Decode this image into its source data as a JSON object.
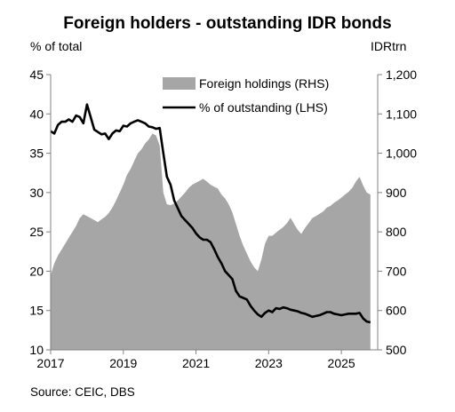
{
  "chart_data": {
    "type": "area",
    "title": "Foreign holders - outstanding IDR bonds",
    "left_axis": {
      "unit_label": "% of total",
      "ylim": [
        10,
        45
      ],
      "ticks": [
        10,
        15,
        20,
        25,
        30,
        35,
        40,
        45
      ]
    },
    "right_axis": {
      "unit_label": "IDRtrn",
      "ylim": [
        500,
        1200
      ],
      "ticks": [
        "500",
        "600",
        "700",
        "800",
        "900",
        "1,000",
        "1,100",
        "1,200"
      ],
      "tick_values": [
        500,
        600,
        700,
        800,
        900,
        1000,
        1100,
        1200
      ]
    },
    "x_axis": {
      "range": [
        2017.0,
        2026.0
      ],
      "ticks": [
        "2017",
        "2019",
        "2021",
        "2023",
        "2025"
      ],
      "tick_values": [
        2017,
        2019,
        2021,
        2023,
        2025
      ]
    },
    "grid": false,
    "legend_position": "top-right",
    "source": "Source: CEIC, DBS",
    "series": [
      {
        "name": "Foreign holdings (RHS)",
        "axis": "right",
        "kind": "area",
        "color": "#a6a6a6",
        "x": [
          2017.0,
          2017.1,
          2017.2,
          2017.3,
          2017.4,
          2017.5,
          2017.6,
          2017.7,
          2017.8,
          2017.9,
          2018.0,
          2018.1,
          2018.2,
          2018.3,
          2018.4,
          2018.5,
          2018.6,
          2018.7,
          2018.8,
          2018.9,
          2019.0,
          2019.1,
          2019.2,
          2019.3,
          2019.4,
          2019.5,
          2019.6,
          2019.7,
          2019.8,
          2019.9,
          2020.0,
          2020.1,
          2020.2,
          2020.3,
          2020.4,
          2020.5,
          2020.6,
          2020.7,
          2020.8,
          2020.9,
          2021.0,
          2021.1,
          2021.2,
          2021.3,
          2021.4,
          2021.5,
          2021.6,
          2021.7,
          2021.8,
          2021.9,
          2022.0,
          2022.1,
          2022.2,
          2022.3,
          2022.4,
          2022.5,
          2022.6,
          2022.7,
          2022.8,
          2022.9,
          2023.0,
          2023.1,
          2023.2,
          2023.3,
          2023.4,
          2023.5,
          2023.6,
          2023.7,
          2023.8,
          2023.9,
          2024.0,
          2024.1,
          2024.2,
          2024.3,
          2024.4,
          2024.5,
          2024.6,
          2024.7,
          2024.8,
          2024.9,
          2025.0,
          2025.1,
          2025.2,
          2025.3,
          2025.4,
          2025.5,
          2025.6,
          2025.7,
          2025.8
        ],
        "values": [
          690,
          720,
          740,
          755,
          770,
          785,
          800,
          815,
          835,
          845,
          840,
          835,
          830,
          825,
          832,
          838,
          848,
          862,
          880,
          900,
          920,
          945,
          960,
          980,
          1000,
          1010,
          1025,
          1035,
          1050,
          1045,
          1020,
          900,
          870,
          868,
          872,
          880,
          890,
          900,
          912,
          920,
          925,
          930,
          935,
          928,
          920,
          915,
          910,
          895,
          885,
          870,
          850,
          820,
          790,
          765,
          745,
          725,
          710,
          700,
          730,
          770,
          790,
          790,
          798,
          805,
          812,
          822,
          836,
          820,
          805,
          795,
          810,
          822,
          835,
          840,
          846,
          852,
          862,
          866,
          874,
          880,
          887,
          895,
          902,
          912,
          928,
          940,
          918,
          900,
          895
        ]
      },
      {
        "name": "% of outstanding (LHS)",
        "axis": "left",
        "kind": "line",
        "color": "#000000",
        "x": [
          2017.0,
          2017.1,
          2017.2,
          2017.3,
          2017.4,
          2017.5,
          2017.6,
          2017.7,
          2017.8,
          2017.9,
          2018.0,
          2018.1,
          2018.2,
          2018.3,
          2018.4,
          2018.5,
          2018.6,
          2018.7,
          2018.8,
          2018.9,
          2019.0,
          2019.1,
          2019.2,
          2019.3,
          2019.4,
          2019.5,
          2019.6,
          2019.7,
          2019.8,
          2019.9,
          2020.0,
          2020.1,
          2020.2,
          2020.3,
          2020.4,
          2020.5,
          2020.6,
          2020.7,
          2020.8,
          2020.9,
          2021.0,
          2021.1,
          2021.2,
          2021.3,
          2021.4,
          2021.5,
          2021.6,
          2021.7,
          2021.8,
          2021.9,
          2022.0,
          2022.1,
          2022.2,
          2022.3,
          2022.4,
          2022.5,
          2022.6,
          2022.7,
          2022.8,
          2022.9,
          2023.0,
          2023.1,
          2023.2,
          2023.3,
          2023.4,
          2023.5,
          2023.6,
          2023.7,
          2023.8,
          2023.9,
          2024.0,
          2024.1,
          2024.2,
          2024.3,
          2024.4,
          2024.5,
          2024.6,
          2024.7,
          2024.8,
          2024.9,
          2025.0,
          2025.1,
          2025.2,
          2025.3,
          2025.4,
          2025.5,
          2025.6,
          2025.7,
          2025.8
        ],
        "values": [
          37.8,
          37.5,
          38.6,
          39.0,
          39.0,
          39.3,
          39.0,
          39.8,
          39.6,
          38.8,
          41.2,
          39.6,
          38.0,
          37.7,
          37.4,
          37.5,
          36.8,
          37.5,
          37.9,
          37.8,
          38.5,
          38.4,
          38.8,
          39.0,
          39.2,
          39.0,
          38.8,
          38.4,
          38.3,
          38.1,
          38.2,
          35.0,
          32.0,
          31.0,
          29.0,
          28.0,
          27.0,
          26.5,
          26.0,
          25.5,
          24.8,
          24.3,
          24.0,
          24.0,
          23.7,
          22.8,
          21.8,
          21.0,
          20.0,
          19.5,
          19.0,
          17.5,
          16.8,
          16.6,
          16.4,
          15.6,
          15.0,
          14.5,
          14.2,
          14.7,
          15.0,
          14.8,
          15.3,
          15.2,
          15.4,
          15.3,
          15.1,
          15.0,
          14.9,
          14.7,
          14.6,
          14.4,
          14.2,
          14.3,
          14.4,
          14.6,
          14.8,
          14.8,
          14.6,
          14.5,
          14.4,
          14.5,
          14.6,
          14.6,
          14.6,
          14.7,
          14.0,
          13.6,
          13.5
        ]
      }
    ]
  }
}
